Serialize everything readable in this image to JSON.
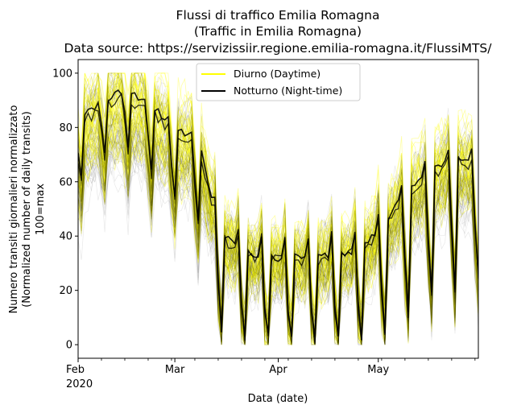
{
  "chart_data": {
    "type": "line",
    "title_lines": [
      "Flussi di traffico Emilia Romagna",
      "(Traffic in Emilia Romagna)",
      "Data source: https://servizissiir.regione.emilia-romagna.it/FlussiMTS/"
    ],
    "xlabel": "Data (date)",
    "ylabel_lines": [
      "Numero transiti giornalieri normalizzato",
      "(Normalized number of daily transits)",
      "100=max"
    ],
    "x_range": [
      "2020-02-01",
      "2020-05-31"
    ],
    "ylim": [
      -5,
      105
    ],
    "y_ticks": [
      0,
      20,
      40,
      60,
      80,
      100
    ],
    "x_ticks": [
      {
        "date": "2020-02-01",
        "label": "Feb",
        "sublabel": "2020"
      },
      {
        "date": "2020-03-01",
        "label": "Mar",
        "sublabel": ""
      },
      {
        "date": "2020-04-01",
        "label": "Apr",
        "sublabel": ""
      },
      {
        "date": "2020-05-01",
        "label": "May",
        "sublabel": ""
      }
    ],
    "legend": {
      "placement": "upper-center",
      "entries": [
        {
          "label": "Diurno (Daytime)",
          "color": "#ffff00"
        },
        {
          "label": "Notturno (Night-time)",
          "color": "#000000"
        }
      ]
    },
    "series_summary": {
      "note_dates": [
        "2020-02-01",
        "2020-02-08",
        "2020-02-15",
        "2020-02-22",
        "2020-03-01",
        "2020-03-08",
        "2020-03-12",
        "2020-03-15",
        "2020-03-22",
        "2020-03-29",
        "2020-04-05",
        "2020-04-12",
        "2020-04-19",
        "2020-04-26",
        "2020-05-03",
        "2020-05-10",
        "2020-05-17",
        "2020-05-24",
        "2020-05-31"
      ],
      "weekday_median": [
        80,
        88,
        92,
        88,
        75,
        72,
        45,
        30,
        22,
        20,
        20,
        20,
        22,
        24,
        35,
        50,
        58,
        65,
        60
      ],
      "weekend_min": [
        60,
        70,
        75,
        65,
        55,
        45,
        25,
        5,
        3,
        3,
        3,
        2,
        3,
        3,
        5,
        12,
        18,
        20,
        25
      ]
    }
  }
}
